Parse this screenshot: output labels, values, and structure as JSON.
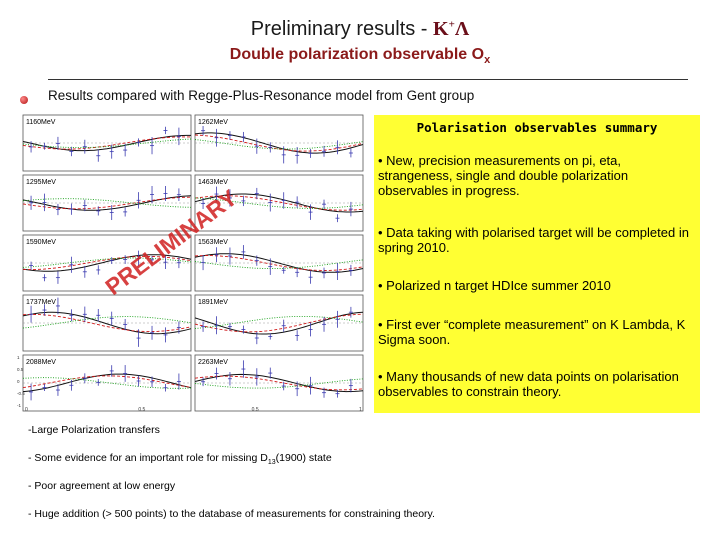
{
  "header": {
    "title_prefix": "Preliminary results - ",
    "title_k": "K",
    "title_plus": "+",
    "title_lambda": "Λ",
    "subtitle_prefix": "Double polarization observable O",
    "subtitle_sub": "x"
  },
  "intro_bullet": "Results compared with Regge-Plus-Resonance model from Gent group",
  "figure": {
    "energy_labels": [
      "1160MeV",
      "1262MeV",
      "1295MeV",
      "1463MeV",
      "1590MeV",
      "1563MeV",
      "1737MeV",
      "1891MeV",
      "2088MeV",
      "2263MeV"
    ],
    "watermark": "PRELIMINARY",
    "y_ticks": [
      "1",
      "0.5",
      "0",
      "-0.5",
      "-1"
    ],
    "x_ticks": [
      "0",
      "0.5",
      "0.5",
      "1"
    ]
  },
  "summary": {
    "title": "Polarisation observables summary",
    "points": [
      "• New, precision measurements on pi, eta, strangeness, single and double polarization observables in progress.",
      "• Data taking with polarised target will be completed in spring 2010.",
      "• Polarized n target HDIce summer 2010",
      "• First ever “complete measurement” on K Lambda, K Sigma soon.",
      "• Many thousands of new data points on polarisation observables to constrain theory."
    ]
  },
  "conclusions": {
    "line1": "-Large Polarization transfers",
    "line2_prefix": "- Some evidence for an important role for missing D",
    "line2_sub": "13",
    "line2_suffix": "(1900) state",
    "line3": "- Poor agreement at low energy",
    "line4": "- Huge addition (> 500 points) to the database of measurements for constraining theory."
  },
  "colors": {
    "accent": "#8b1a1a",
    "summary_bg": "#ffff33",
    "watermark": "#d02020",
    "data_points": "#3a3ab0",
    "curve_black": "#111111",
    "curve_red": "#d01818",
    "curve_green": "#18a018"
  }
}
